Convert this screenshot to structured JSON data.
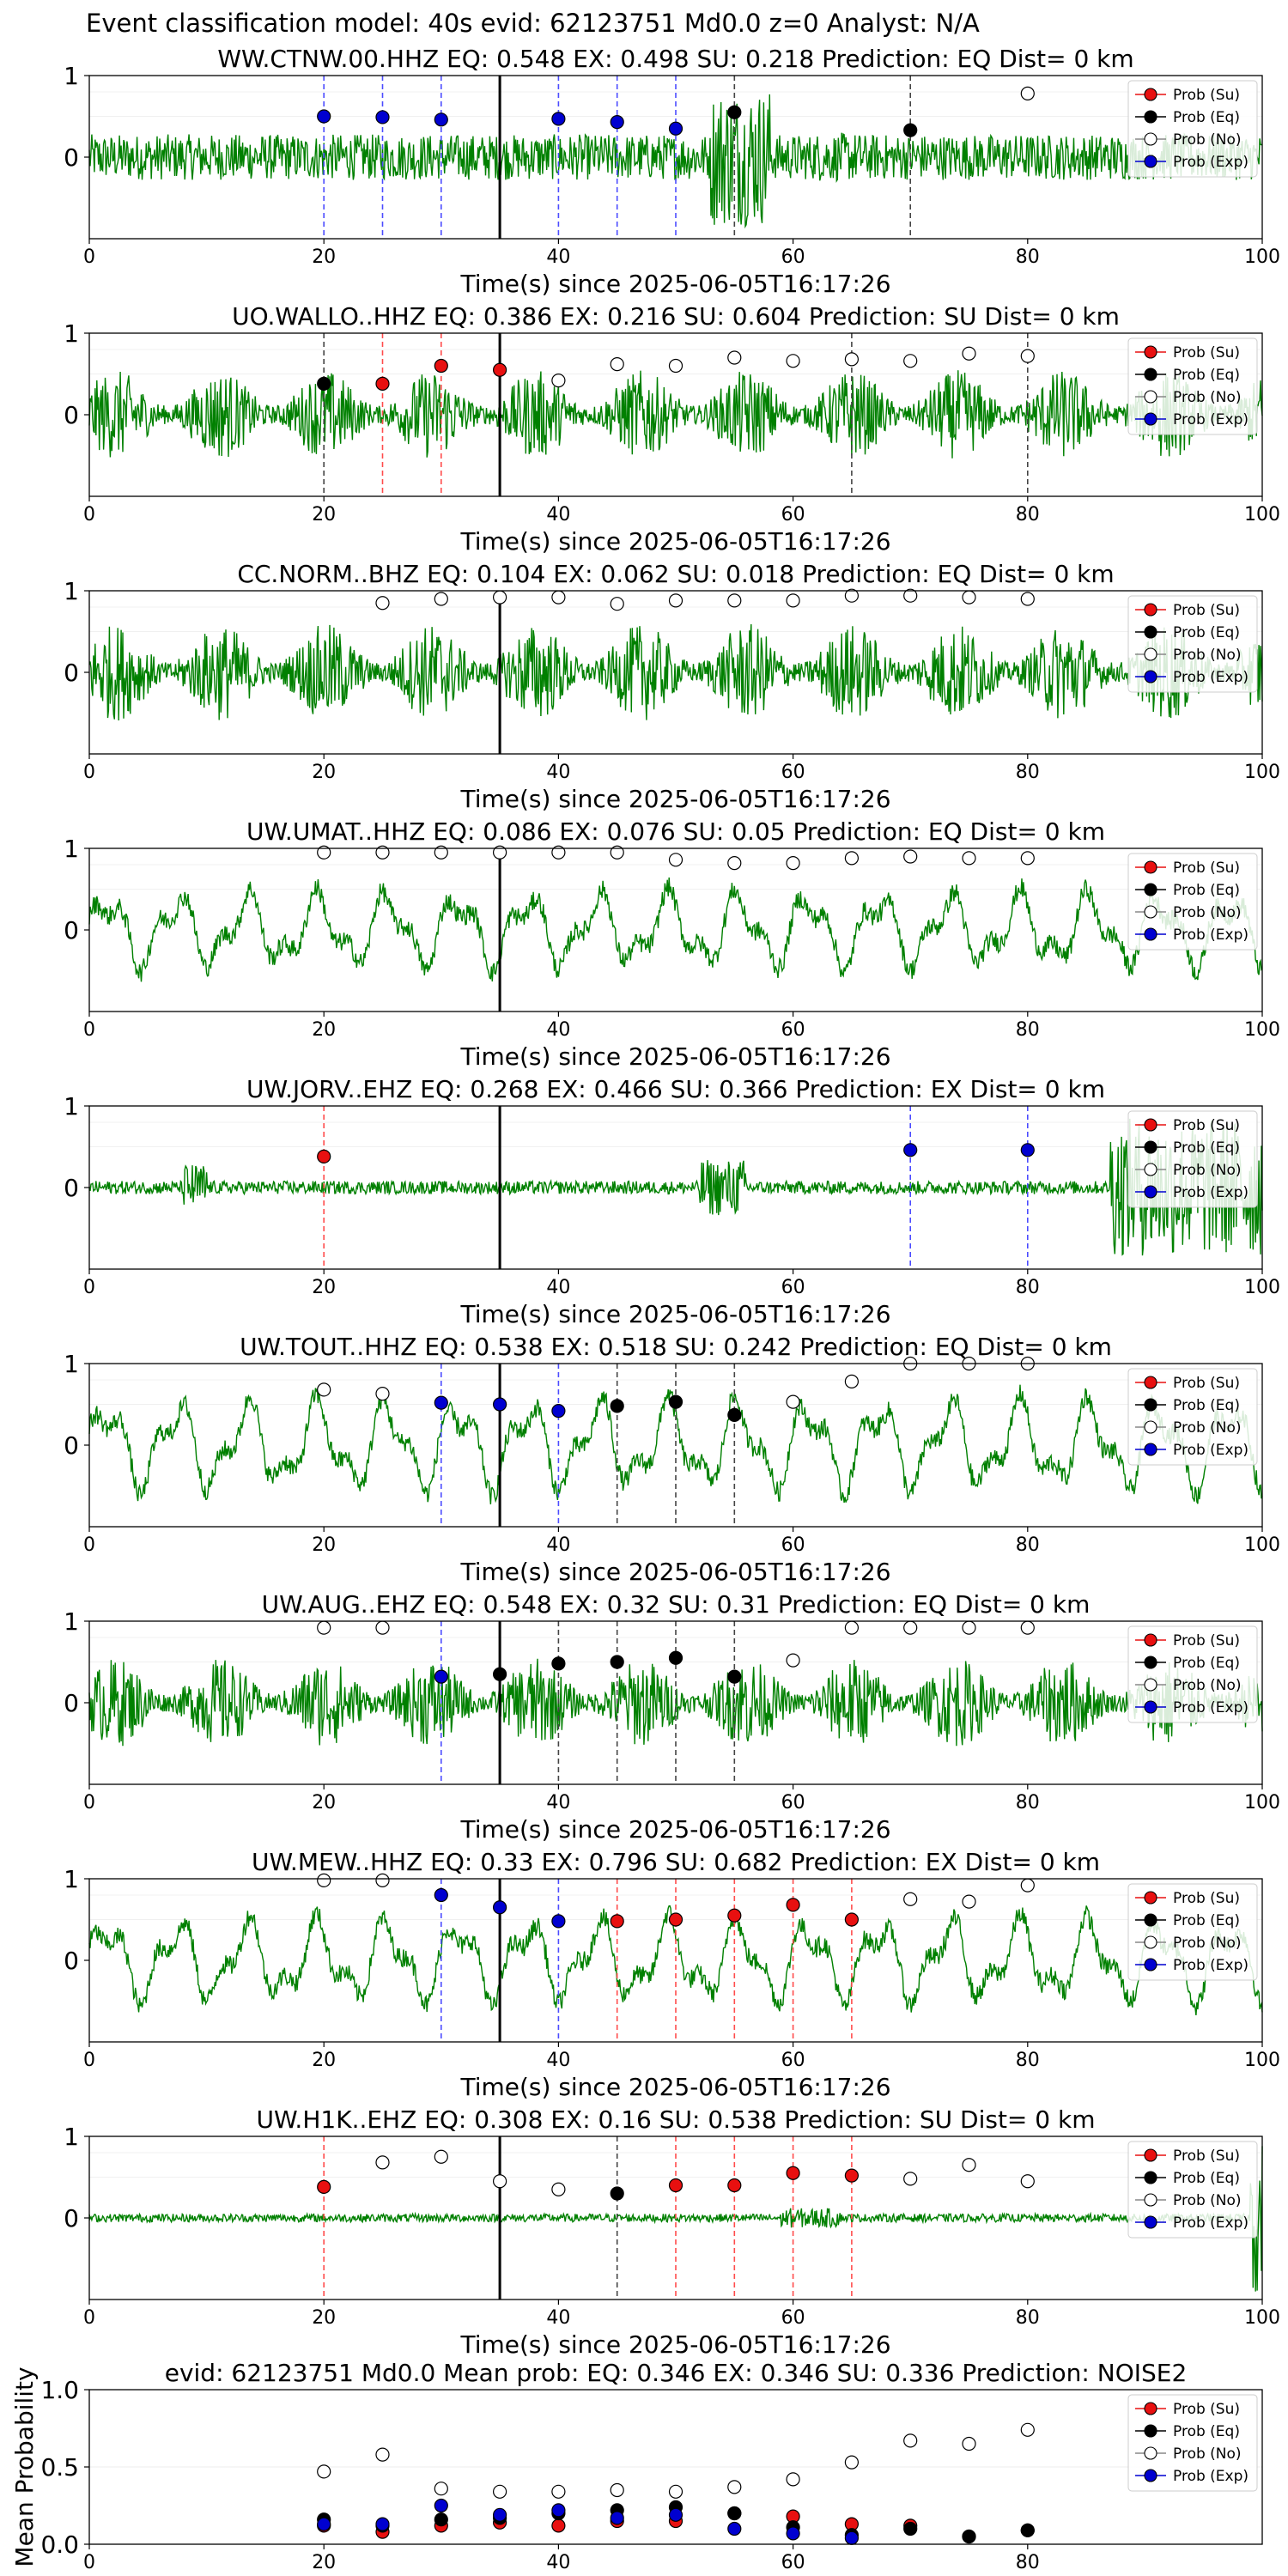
{
  "figure_title": "Event classification model: 40s evid: 62123751 Md0.0 z=0 Analyst: N/A",
  "colors": {
    "waveform": "#008000",
    "su": "#e81010",
    "eq": "#000000",
    "no": "#ffffff",
    "exp": "#0000d0",
    "su_line": "#ff4c4c",
    "eq_line": "#444444",
    "exp_line": "#4c4cff"
  },
  "legend_labels": [
    "Prob (Su)",
    "Prob (Eq)",
    "Prob (No)",
    "Prob (Exp)"
  ],
  "chart_data": [
    {
      "type": "line",
      "title": "WW.CTNW.00.HHZ    EQ: 0.548   EX: 0.498   SU: 0.218    Prediction: EQ     Dist= 0 km",
      "xlabel": "Time(s) since 2025-06-05T16:17:26",
      "xlim": [
        0,
        100
      ],
      "ylim": [
        -1,
        1
      ],
      "xticks": [
        "0",
        "20",
        "40",
        "60",
        "80",
        "100"
      ],
      "yticks": [
        "0",
        "1"
      ],
      "pick_time": 35,
      "waveform": {
        "style": "burst",
        "bursts": [
          [
            53,
            58,
            0.85
          ],
          [
            62,
            66,
            0.3
          ]
        ],
        "base": 0.28
      },
      "series": [
        {
          "key": "su",
          "x": [],
          "y": []
        },
        {
          "key": "eq",
          "x": [
            55,
            70
          ],
          "y": [
            0.55,
            0.33
          ]
        },
        {
          "key": "no",
          "x": [
            80
          ],
          "y": [
            0.78
          ]
        },
        {
          "key": "exp",
          "x": [
            20,
            25,
            30,
            40,
            45,
            50
          ],
          "y": [
            0.5,
            0.49,
            0.46,
            0.47,
            0.43,
            0.35
          ]
        }
      ],
      "vlines": [
        {
          "x": 20,
          "key": "exp"
        },
        {
          "x": 25,
          "key": "exp"
        },
        {
          "x": 30,
          "key": "exp"
        },
        {
          "x": 40,
          "key": "exp"
        },
        {
          "x": 45,
          "key": "exp"
        },
        {
          "x": 50,
          "key": "exp"
        },
        {
          "x": 55,
          "key": "eq"
        },
        {
          "x": 70,
          "key": "eq"
        }
      ]
    },
    {
      "type": "line",
      "title": "UO.WALLO..HHZ    EQ: 0.386   EX: 0.216   SU: 0.604    Prediction: SU     Dist= 0 km",
      "xlabel": "Time(s) since 2025-06-05T16:17:26",
      "xlim": [
        0,
        100
      ],
      "ylim": [
        -1,
        1
      ],
      "xticks": [
        "0",
        "20",
        "40",
        "60",
        "80",
        "100"
      ],
      "yticks": [
        "0",
        "1"
      ],
      "pick_time": 35,
      "waveform": {
        "style": "noise",
        "amp": 0.55
      },
      "series": [
        {
          "key": "su",
          "x": [
            25,
            30,
            35
          ],
          "y": [
            0.38,
            0.6,
            0.55
          ]
        },
        {
          "key": "eq",
          "x": [
            20
          ],
          "y": [
            0.38
          ]
        },
        {
          "key": "no",
          "x": [
            40,
            45,
            50,
            55,
            60,
            65,
            70,
            75,
            80
          ],
          "y": [
            0.42,
            0.62,
            0.6,
            0.7,
            0.66,
            0.68,
            0.66,
            0.75,
            0.72
          ]
        },
        {
          "key": "exp",
          "x": [],
          "y": []
        }
      ],
      "vlines": [
        {
          "x": 20,
          "key": "eq"
        },
        {
          "x": 25,
          "key": "su"
        },
        {
          "x": 30,
          "key": "su"
        },
        {
          "x": 35,
          "key": "su"
        },
        {
          "x": 65,
          "key": "eq"
        },
        {
          "x": 80,
          "key": "eq"
        }
      ]
    },
    {
      "type": "line",
      "title": "CC.NORM..BHZ    EQ: 0.104   EX: 0.062   SU: 0.018    Prediction: EQ     Dist= 0 km",
      "xlabel": "Time(s) since 2025-06-05T16:17:26",
      "xlim": [
        0,
        100
      ],
      "ylim": [
        -1,
        1
      ],
      "xticks": [
        "0",
        "20",
        "40",
        "60",
        "80",
        "100"
      ],
      "yticks": [
        "0",
        "1"
      ],
      "pick_time": 35,
      "waveform": {
        "style": "noise",
        "amp": 0.6
      },
      "series": [
        {
          "key": "su",
          "x": [],
          "y": []
        },
        {
          "key": "eq",
          "x": [],
          "y": []
        },
        {
          "key": "no",
          "x": [
            25,
            30,
            35,
            40,
            45,
            50,
            55,
            60,
            65,
            70,
            75,
            80
          ],
          "y": [
            0.85,
            0.9,
            0.92,
            0.92,
            0.84,
            0.88,
            0.88,
            0.88,
            0.94,
            0.94,
            0.92,
            0.9
          ]
        },
        {
          "key": "exp",
          "x": [],
          "y": []
        }
      ],
      "vlines": []
    },
    {
      "type": "line",
      "title": "UW.UMAT..HHZ    EQ: 0.086   EX: 0.076   SU: 0.05    Prediction: EQ     Dist= 0 km",
      "xlabel": "Time(s) since 2025-06-05T16:17:26",
      "xlim": [
        0,
        100
      ],
      "ylim": [
        -1,
        1
      ],
      "xticks": [
        "0",
        "20",
        "40",
        "60",
        "80",
        "100"
      ],
      "yticks": [
        "0",
        "1"
      ],
      "pick_time": 35,
      "waveform": {
        "style": "wave",
        "amp": 0.5
      },
      "series": [
        {
          "key": "su",
          "x": [],
          "y": []
        },
        {
          "key": "eq",
          "x": [],
          "y": []
        },
        {
          "key": "no",
          "x": [
            20,
            25,
            30,
            35,
            40,
            45,
            50,
            55,
            60,
            65,
            70,
            75,
            80
          ],
          "y": [
            0.95,
            0.95,
            0.95,
            0.95,
            0.95,
            0.95,
            0.86,
            0.82,
            0.82,
            0.88,
            0.9,
            0.88,
            0.88
          ]
        },
        {
          "key": "exp",
          "x": [],
          "y": []
        }
      ],
      "vlines": []
    },
    {
      "type": "line",
      "title": "UW.JORV..EHZ    EQ: 0.268   EX: 0.466   SU: 0.366    Prediction: EX     Dist= 0 km",
      "xlabel": "Time(s) since 2025-06-05T16:17:26",
      "xlim": [
        0,
        100
      ],
      "ylim": [
        -1,
        1
      ],
      "xticks": [
        "0",
        "20",
        "40",
        "60",
        "80",
        "100"
      ],
      "yticks": [
        "0",
        "1"
      ],
      "pick_time": 35,
      "waveform": {
        "style": "burst",
        "bursts": [
          [
            8,
            10,
            0.3
          ],
          [
            52,
            56,
            0.35
          ],
          [
            87,
            100,
            0.85
          ]
        ],
        "base": 0.08
      },
      "series": [
        {
          "key": "su",
          "x": [
            20
          ],
          "y": [
            0.38
          ]
        },
        {
          "key": "eq",
          "x": [],
          "y": []
        },
        {
          "key": "no",
          "x": [],
          "y": []
        },
        {
          "key": "exp",
          "x": [
            70,
            80
          ],
          "y": [
            0.46,
            0.46
          ]
        }
      ],
      "vlines": [
        {
          "x": 20,
          "key": "su"
        },
        {
          "x": 70,
          "key": "exp"
        },
        {
          "x": 80,
          "key": "exp"
        }
      ]
    },
    {
      "type": "line",
      "title": "UW.TOUT..HHZ    EQ: 0.538   EX: 0.518   SU: 0.242    Prediction: EQ     Dist= 0 km",
      "xlabel": "Time(s) since 2025-06-05T16:17:26",
      "xlim": [
        0,
        100
      ],
      "ylim": [
        -1,
        1
      ],
      "xticks": [
        "0",
        "20",
        "40",
        "60",
        "80",
        "100"
      ],
      "yticks": [
        "0",
        "1"
      ],
      "pick_time": 35,
      "waveform": {
        "style": "wave",
        "amp": 0.6
      },
      "series": [
        {
          "key": "su",
          "x": [],
          "y": []
        },
        {
          "key": "eq",
          "x": [
            45,
            50,
            55
          ],
          "y": [
            0.48,
            0.53,
            0.37
          ]
        },
        {
          "key": "no",
          "x": [
            20,
            25,
            60,
            65,
            70,
            75,
            80
          ],
          "y": [
            0.68,
            0.63,
            0.53,
            0.78,
            1.0,
            1.0,
            1.0
          ]
        },
        {
          "key": "exp",
          "x": [
            30,
            35,
            40
          ],
          "y": [
            0.52,
            0.5,
            0.42
          ]
        }
      ],
      "vlines": [
        {
          "x": 30,
          "key": "exp"
        },
        {
          "x": 40,
          "key": "exp"
        },
        {
          "x": 45,
          "key": "eq"
        },
        {
          "x": 50,
          "key": "eq"
        },
        {
          "x": 55,
          "key": "eq"
        }
      ]
    },
    {
      "type": "line",
      "title": "UW.AUG..EHZ    EQ: 0.548   EX: 0.32   SU: 0.31    Prediction: EQ     Dist= 0 km",
      "xlabel": "Time(s) since 2025-06-05T16:17:26",
      "xlim": [
        0,
        100
      ],
      "ylim": [
        -1,
        1
      ],
      "xticks": [
        "0",
        "20",
        "40",
        "60",
        "80",
        "100"
      ],
      "yticks": [
        "0",
        "1"
      ],
      "pick_time": 35,
      "waveform": {
        "style": "noise",
        "amp": 0.55
      },
      "series": [
        {
          "key": "su",
          "x": [],
          "y": []
        },
        {
          "key": "eq",
          "x": [
            35,
            40,
            45,
            50,
            55
          ],
          "y": [
            0.35,
            0.48,
            0.5,
            0.55,
            0.32
          ]
        },
        {
          "key": "no",
          "x": [
            20,
            25,
            60,
            65,
            70,
            75,
            80
          ],
          "y": [
            0.92,
            0.92,
            0.52,
            0.92,
            0.92,
            0.92,
            0.92
          ]
        },
        {
          "key": "exp",
          "x": [
            30
          ],
          "y": [
            0.32
          ]
        }
      ],
      "vlines": [
        {
          "x": 30,
          "key": "exp"
        },
        {
          "x": 40,
          "key": "eq"
        },
        {
          "x": 45,
          "key": "eq"
        },
        {
          "x": 50,
          "key": "eq"
        },
        {
          "x": 55,
          "key": "eq"
        }
      ]
    },
    {
      "type": "line",
      "title": "UW.MEW..HHZ    EQ: 0.33   EX: 0.796   SU: 0.682    Prediction: EX     Dist= 0 km",
      "xlabel": "Time(s) since 2025-06-05T16:17:26",
      "xlim": [
        0,
        100
      ],
      "ylim": [
        -1,
        1
      ],
      "xticks": [
        "0",
        "20",
        "40",
        "60",
        "80",
        "100"
      ],
      "yticks": [
        "0",
        "1"
      ],
      "pick_time": 35,
      "waveform": {
        "style": "wave",
        "amp": 0.55
      },
      "series": [
        {
          "key": "su",
          "x": [
            45,
            50,
            55,
            60,
            65
          ],
          "y": [
            0.48,
            0.5,
            0.55,
            0.68,
            0.5
          ]
        },
        {
          "key": "eq",
          "x": [],
          "y": []
        },
        {
          "key": "no",
          "x": [
            20,
            25,
            70,
            75,
            80
          ],
          "y": [
            0.98,
            0.98,
            0.75,
            0.72,
            0.92
          ]
        },
        {
          "key": "exp",
          "x": [
            30,
            35,
            40
          ],
          "y": [
            0.8,
            0.65,
            0.48
          ]
        }
      ],
      "vlines": [
        {
          "x": 30,
          "key": "exp"
        },
        {
          "x": 40,
          "key": "exp"
        },
        {
          "x": 45,
          "key": "su"
        },
        {
          "x": 50,
          "key": "su"
        },
        {
          "x": 55,
          "key": "su"
        },
        {
          "x": 60,
          "key": "su"
        },
        {
          "x": 65,
          "key": "su"
        }
      ]
    },
    {
      "type": "line",
      "title": "UW.H1K..EHZ    EQ: 0.308   EX: 0.16   SU: 0.538    Prediction: SU     Dist= 0 km",
      "xlabel": "Time(s) since 2025-06-05T16:17:26",
      "xlim": [
        0,
        100
      ],
      "ylim": [
        -1,
        1
      ],
      "xticks": [
        "0",
        "20",
        "40",
        "60",
        "80",
        "100"
      ],
      "yticks": [
        "0",
        "1"
      ],
      "pick_time": 35,
      "waveform": {
        "style": "burst",
        "bursts": [
          [
            59,
            64,
            0.12
          ],
          [
            99,
            100,
            0.95
          ]
        ],
        "base": 0.05
      },
      "series": [
        {
          "key": "su",
          "x": [
            20,
            50,
            55,
            60,
            65
          ],
          "y": [
            0.38,
            0.4,
            0.4,
            0.55,
            0.52
          ]
        },
        {
          "key": "eq",
          "x": [
            45
          ],
          "y": [
            0.3
          ]
        },
        {
          "key": "no",
          "x": [
            25,
            30,
            35,
            40,
            70,
            75,
            80
          ],
          "y": [
            0.68,
            0.75,
            0.45,
            0.35,
            0.48,
            0.65,
            0.45
          ]
        },
        {
          "key": "exp",
          "x": [],
          "y": []
        }
      ],
      "vlines": [
        {
          "x": 20,
          "key": "su"
        },
        {
          "x": 45,
          "key": "eq"
        },
        {
          "x": 50,
          "key": "su"
        },
        {
          "x": 55,
          "key": "su"
        },
        {
          "x": 60,
          "key": "su"
        },
        {
          "x": 65,
          "key": "su"
        }
      ]
    },
    {
      "type": "scatter",
      "title": "evid: 62123751   Md0.0    Mean prob:     EQ: 0.346   EX: 0.346   SU: 0.336    Prediction: NOISE2",
      "xlabel": "",
      "ylabel": "Mean Probability",
      "xlim": [
        0,
        100
      ],
      "ylim": [
        0,
        1
      ],
      "xticks": [
        "0",
        "20",
        "40",
        "60",
        "80"
      ],
      "yticks": [
        "0.0",
        "0.5",
        "1.0"
      ],
      "series": [
        {
          "key": "su",
          "x": [
            20,
            25,
            30,
            35,
            40,
            45,
            50,
            55,
            60,
            65,
            70,
            75,
            80
          ],
          "y": [
            0.12,
            0.08,
            0.12,
            0.14,
            0.12,
            0.15,
            0.15,
            0.2,
            0.18,
            0.13,
            0.12,
            0.05,
            0.09
          ]
        },
        {
          "key": "eq",
          "x": [
            20,
            25,
            30,
            35,
            40,
            45,
            50,
            55,
            60,
            65,
            70,
            75,
            80
          ],
          "y": [
            0.16,
            0.12,
            0.16,
            0.17,
            0.2,
            0.22,
            0.24,
            0.2,
            0.11,
            0.06,
            0.1,
            0.05,
            0.09
          ]
        },
        {
          "key": "no",
          "x": [
            20,
            25,
            30,
            35,
            40,
            45,
            50,
            55,
            60,
            65,
            70,
            75,
            80
          ],
          "y": [
            0.47,
            0.58,
            0.36,
            0.34,
            0.34,
            0.35,
            0.34,
            0.37,
            0.42,
            0.53,
            0.67,
            0.65,
            0.74
          ]
        },
        {
          "key": "exp",
          "x": [
            20,
            25,
            30,
            35,
            40,
            45,
            50,
            55,
            60,
            65
          ],
          "y": [
            0.13,
            0.13,
            0.25,
            0.19,
            0.22,
            0.17,
            0.19,
            0.1,
            0.07,
            0.04
          ]
        }
      ],
      "vlines": []
    }
  ]
}
